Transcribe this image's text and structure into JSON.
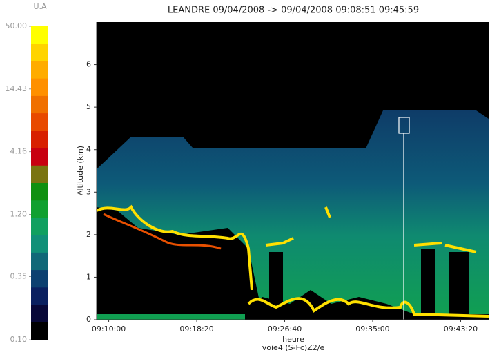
{
  "chart_data": {
    "type": "heatmap",
    "title": "LEANDRE 09/04/2008 -> 09/04/2008 09:08:51 09:45:59",
    "y_label": "Altitude (km)",
    "x_label": "heure",
    "subtitle": "voie4 (S-Fc)Z2/e",
    "xlim": [
      32931,
      35159
    ],
    "xticks": [
      {
        "value": 33000,
        "label": "09:10:00"
      },
      {
        "value": 33500,
        "label": "09:18:20"
      },
      {
        "value": 34000,
        "label": "09:26:40"
      },
      {
        "value": 34500,
        "label": "09:35:00"
      },
      {
        "value": 35000,
        "label": "09:43:20"
      }
    ],
    "ylim": [
      0,
      7
    ],
    "yticks": [
      0,
      1,
      2,
      3,
      4,
      5,
      6
    ],
    "colorbar": {
      "label": "U.A",
      "scale": "log",
      "lim": [
        0.1,
        50
      ],
      "ticks": [
        {
          "value": 50,
          "label": "50.00"
        },
        {
          "value": 14.43,
          "label": "14.43"
        },
        {
          "value": 4.16,
          "label": "4.16"
        },
        {
          "value": 1.2,
          "label": "1.20"
        },
        {
          "value": 0.35,
          "label": "0.35"
        },
        {
          "value": 0.1,
          "label": "0.10"
        }
      ],
      "colors": [
        "#ffff00",
        "#ffd400",
        "#ffac00",
        "#ff9000",
        "#f07000",
        "#e84a00",
        "#d82000",
        "#c80010",
        "#7a7410",
        "#109010",
        "#10a030",
        "#10a060",
        "#109078",
        "#106878",
        "#0c4070",
        "#0a2060",
        "#080838",
        "#000000"
      ]
    }
  }
}
